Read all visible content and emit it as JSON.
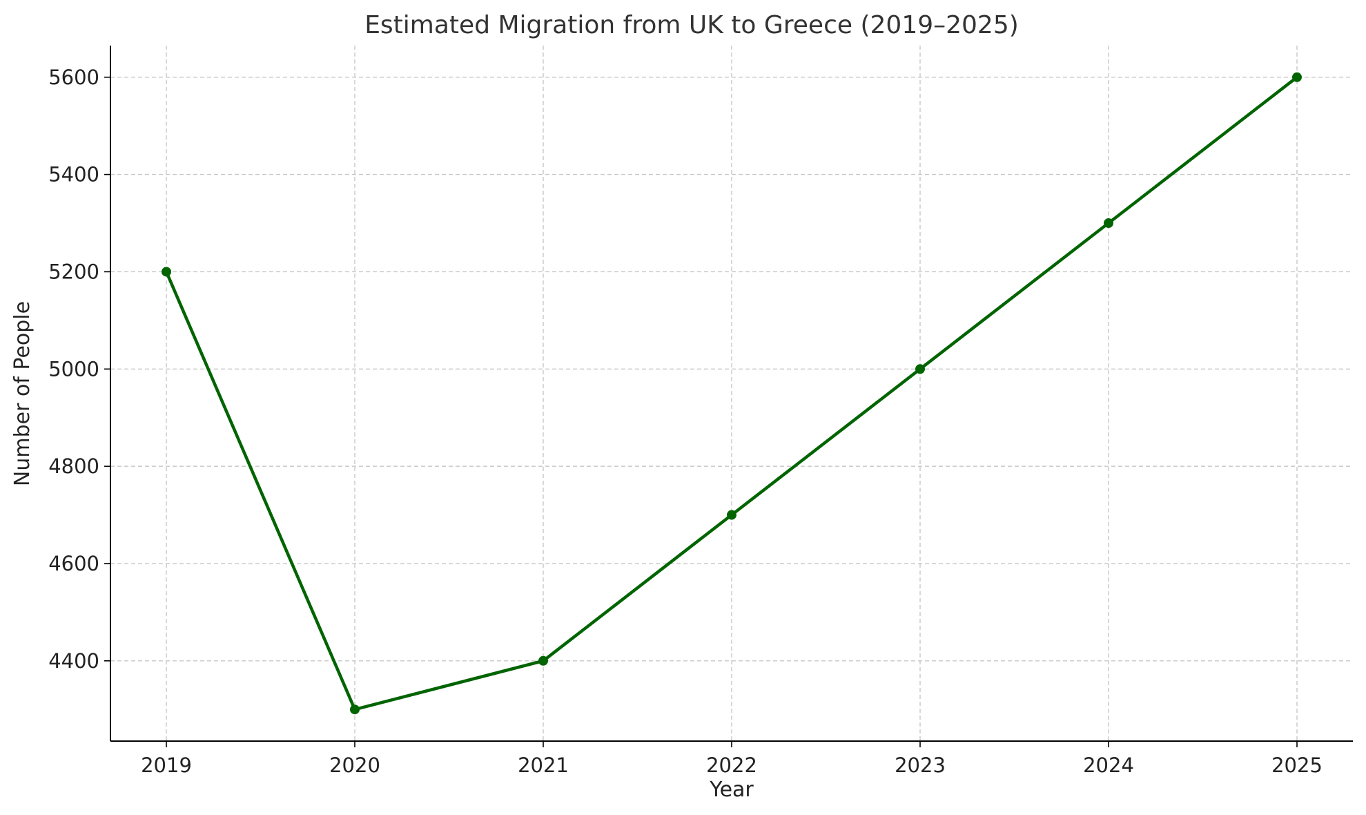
{
  "chart_data": {
    "type": "line",
    "title": "Estimated Migration from UK to Greece (2019–2025)",
    "xlabel": "Year",
    "ylabel": "Number of People",
    "categories": [
      "2019",
      "2020",
      "2021",
      "2022",
      "2023",
      "2024",
      "2025"
    ],
    "series": [
      {
        "values": [
          5200,
          4300,
          4400,
          4700,
          5000,
          5300,
          5600
        ],
        "color": "#006400"
      }
    ],
    "ylim": [
      4235,
      5665
    ],
    "yticks": [
      4400,
      4600,
      4800,
      5000,
      5200,
      5400,
      5600
    ],
    "grid": true,
    "grid_style": "dashed",
    "marker": "circle",
    "colors": {
      "line": "#006400",
      "grid": "#c8c8c8",
      "axis": "#000000",
      "title": "#333333"
    }
  }
}
